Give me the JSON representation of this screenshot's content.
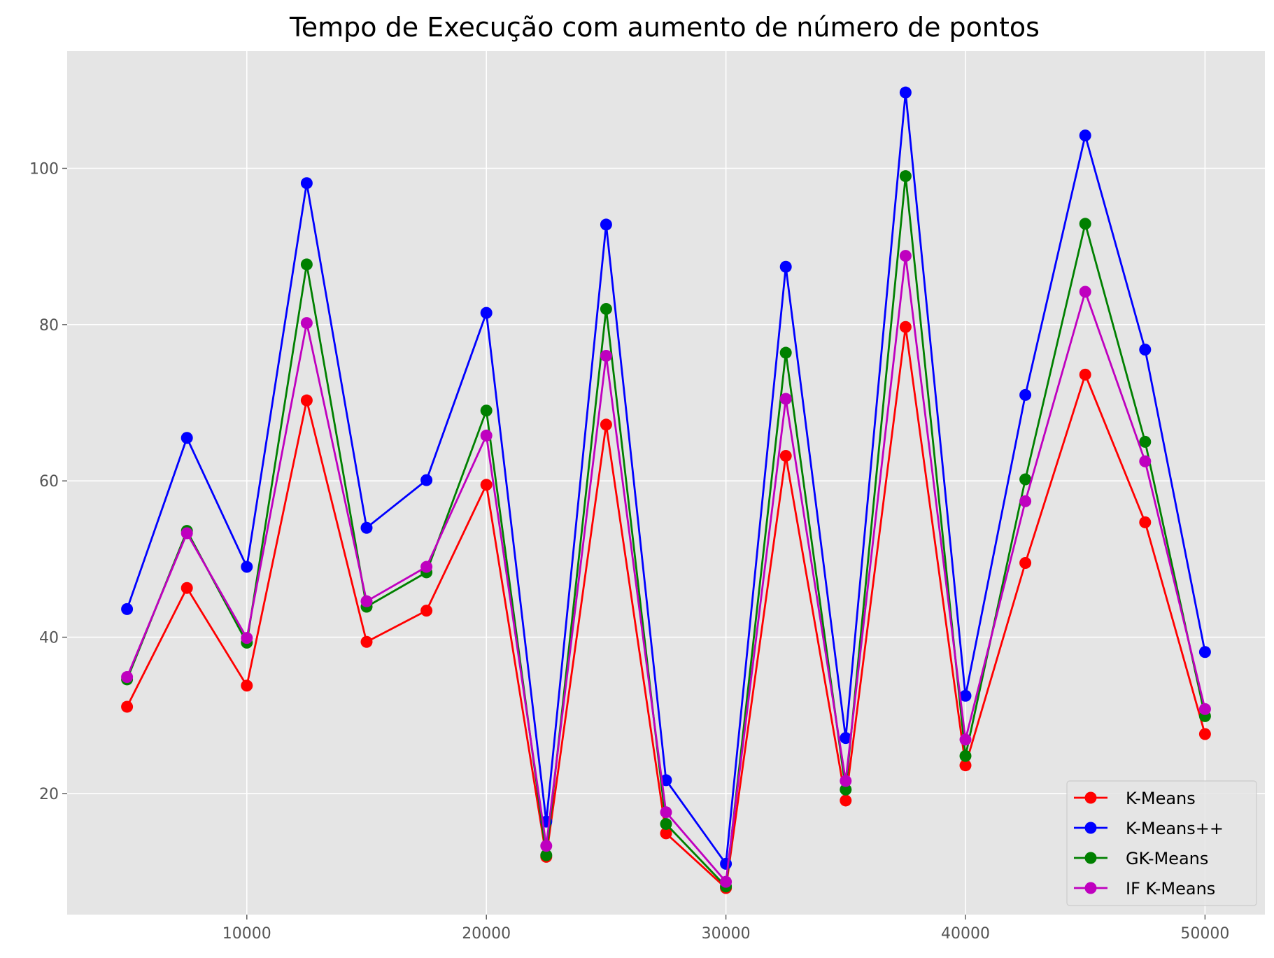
{
  "chart_data": {
    "type": "line",
    "title": "Tempo de Execução com aumento de número de pontos",
    "xlabel": "",
    "ylabel": "",
    "xlim": [
      2500,
      52500
    ],
    "ylim": [
      4.5,
      115
    ],
    "xticks": [
      10000,
      20000,
      30000,
      40000,
      50000
    ],
    "yticks": [
      20,
      40,
      60,
      80,
      100
    ],
    "grid": true,
    "legend_position": "lower right",
    "x": [
      5000,
      7500,
      10000,
      12500,
      15000,
      17500,
      20000,
      22500,
      25000,
      27500,
      30000,
      32500,
      35000,
      37500,
      40000,
      42500,
      45000,
      47500,
      50000
    ],
    "series": [
      {
        "name": "K-Means",
        "color": "#ff0000",
        "values": [
          31.1,
          46.3,
          33.8,
          70.3,
          39.4,
          43.4,
          59.5,
          11.9,
          67.2,
          14.9,
          7.9,
          63.2,
          19.1,
          79.7,
          23.6,
          49.5,
          73.6,
          54.7,
          27.6
        ]
      },
      {
        "name": "K-Means++",
        "color": "#0000ff",
        "values": [
          43.6,
          65.5,
          49.0,
          98.1,
          54.0,
          60.1,
          81.5,
          16.4,
          92.8,
          21.7,
          11.0,
          87.4,
          27.1,
          109.7,
          32.5,
          71.0,
          104.2,
          76.8,
          38.1
        ]
      },
      {
        "name": "GK-Means",
        "color": "#008000",
        "values": [
          34.6,
          53.6,
          39.3,
          87.7,
          43.9,
          48.3,
          69.0,
          12.1,
          82.0,
          16.1,
          8.1,
          76.4,
          20.5,
          99.0,
          24.8,
          60.2,
          92.9,
          65.0,
          29.9
        ]
      },
      {
        "name": "IF K-Means",
        "color": "#bf00bf",
        "values": [
          34.9,
          53.3,
          39.9,
          80.2,
          44.6,
          49.0,
          65.8,
          13.3,
          76.0,
          17.6,
          8.7,
          70.5,
          21.6,
          88.8,
          26.9,
          57.4,
          84.2,
          62.5,
          30.8
        ]
      }
    ]
  }
}
